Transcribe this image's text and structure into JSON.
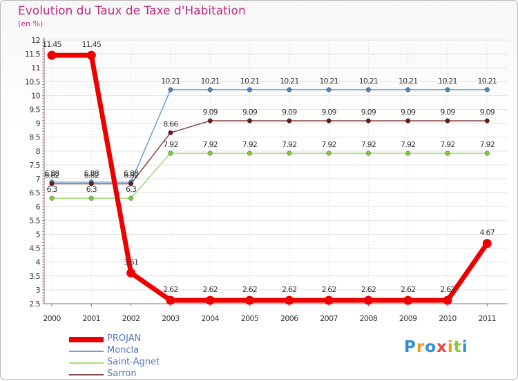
{
  "title": "Evolution du Taux de Taxe d'Habitation",
  "subtitle": "(en %)",
  "logo": "Proxiti",
  "chart_data": {
    "type": "line",
    "title": "Evolution du Taux de Taxe d'Habitation",
    "ylabel": "(en %)",
    "xlabel": "",
    "ylim": [
      2.5,
      12
    ],
    "yticks": [
      "2.5",
      "3",
      "3.5",
      "4",
      "4.5",
      "5",
      "5.5",
      "6",
      "6.5",
      "7",
      "7.5",
      "8",
      "8.5",
      "9",
      "9.5",
      "10",
      "10.5",
      "11",
      "11.5",
      "12"
    ],
    "categories": [
      "2000",
      "2001",
      "2002",
      "2003",
      "2004",
      "2005",
      "2006",
      "2007",
      "2008",
      "2009",
      "2010",
      "2011"
    ],
    "series": [
      {
        "name": "Moncla",
        "color": "#6fa3d0",
        "marker": "#4a87c0",
        "width": "thin",
        "values": [
          6.88,
          6.88,
          6.88,
          10.21,
          10.21,
          10.21,
          10.21,
          10.21,
          10.21,
          10.21,
          10.21,
          10.21
        ],
        "labels": [
          "6.88",
          "6.88",
          "6.88",
          "10.21",
          "10.21",
          "10.21",
          "10.21",
          "10.21",
          "10.21",
          "10.21",
          "10.21",
          "10.21"
        ]
      },
      {
        "name": "Saint-Agnet",
        "color": "#a6dd7d",
        "marker": "#7ccc3a",
        "width": "thin",
        "values": [
          6.3,
          6.3,
          6.3,
          7.92,
          7.92,
          7.92,
          7.92,
          7.92,
          7.92,
          7.92,
          7.92,
          7.92
        ],
        "labels": [
          "6.3",
          "6.3",
          "6.3",
          "7.92",
          "7.92",
          "7.92",
          "7.92",
          "7.92",
          "7.92",
          "7.92",
          "7.92",
          "7.92"
        ]
      },
      {
        "name": "Sarron",
        "color": "#8a4a4a",
        "marker": "#6b1a1a",
        "width": "thin",
        "values": [
          6.82,
          6.82,
          6.82,
          8.66,
          9.09,
          9.09,
          9.09,
          9.09,
          9.09,
          9.09,
          9.09,
          9.09
        ],
        "labels": [
          "6.82",
          "6.82",
          "6.82",
          "8.66",
          "9.09",
          "9.09",
          "9.09",
          "9.09",
          "9.09",
          "9.09",
          "9.09",
          "9.09"
        ]
      },
      {
        "name": "PROJAN",
        "color": "#ee0000",
        "marker": "#ee0000",
        "width": "thick",
        "values": [
          11.45,
          11.45,
          3.61,
          2.62,
          2.62,
          2.62,
          2.62,
          2.62,
          2.62,
          2.62,
          2.62,
          4.67
        ],
        "labels": [
          "11.45",
          "11.45",
          "3.61",
          "2.62",
          "2.62",
          "2.62",
          "2.62",
          "2.62",
          "2.62",
          "2.62",
          "2.62",
          "4.67"
        ]
      }
    ],
    "legend": [
      "PROJAN",
      "Moncla",
      "Saint-Agnet",
      "Sarron"
    ],
    "legend_position": "bottom-left"
  }
}
